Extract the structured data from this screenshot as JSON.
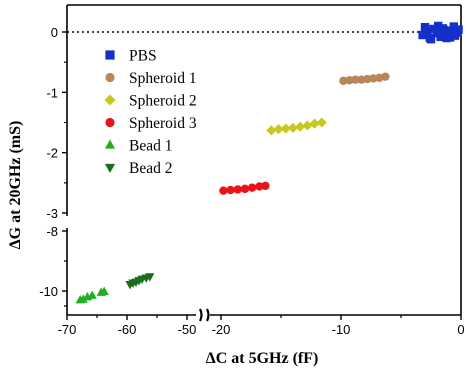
{
  "chart_data": {
    "type": "scatter",
    "title": "",
    "xlabel": "ΔC at 5GHz (fF)",
    "ylabel": "ΔG at 20GHz (mS)",
    "x_axis": {
      "broken": true,
      "segments": [
        [
          -70,
          -50
        ],
        [
          -20,
          0
        ]
      ],
      "ticks": [
        -70,
        -60,
        -50,
        -20,
        -10,
        0
      ],
      "tick_labels": [
        "-70",
        "-60",
        "-50",
        "-20",
        "-10",
        "0"
      ]
    },
    "y_axis": {
      "broken": true,
      "segments": [
        [
          -10.6,
          -8
        ],
        [
          -3,
          0.2
        ]
      ],
      "ticks": [
        0,
        -1,
        -2,
        -3,
        -8,
        -10
      ],
      "tick_labels": [
        "0",
        "-1",
        "-2",
        "-3",
        "-8",
        "-10"
      ]
    },
    "reference_line": {
      "y": 0,
      "style": "dotted"
    },
    "grid": false,
    "legend_position": "top-left",
    "series": [
      {
        "name": "PBS",
        "marker": "square",
        "color": "#1530c8",
        "points": [
          [
            -3.2,
            -0.05
          ],
          [
            -2.9,
            0.0
          ],
          [
            -2.6,
            -0.1
          ],
          [
            -2.3,
            0.05
          ],
          [
            -2.0,
            -0.02
          ],
          [
            -1.7,
            -0.08
          ],
          [
            -1.4,
            0.03
          ],
          [
            -1.1,
            -0.04
          ],
          [
            -0.8,
            0.02
          ],
          [
            -0.5,
            -0.06
          ],
          [
            -0.2,
            0.04
          ],
          [
            -3.0,
            0.08
          ],
          [
            -2.5,
            -0.12
          ],
          [
            -1.9,
            0.1
          ],
          [
            -1.2,
            -0.1
          ],
          [
            -0.6,
            0.09
          ],
          [
            -2.8,
            -0.02
          ],
          [
            -1.5,
            0.06
          ],
          [
            -0.9,
            -0.09
          ],
          [
            -0.3,
            -0.01
          ]
        ]
      },
      {
        "name": "Spheroid 1",
        "marker": "circle",
        "color": "#b8865a",
        "points": [
          [
            -9.8,
            -0.81
          ],
          [
            -9.3,
            -0.8
          ],
          [
            -8.8,
            -0.79
          ],
          [
            -8.3,
            -0.79
          ],
          [
            -7.8,
            -0.78
          ],
          [
            -7.3,
            -0.77
          ],
          [
            -6.8,
            -0.76
          ],
          [
            -6.3,
            -0.74
          ]
        ]
      },
      {
        "name": "Spheroid 2",
        "marker": "diamond",
        "color": "#c8c81e",
        "points": [
          [
            -15.8,
            -1.63
          ],
          [
            -15.2,
            -1.61
          ],
          [
            -14.6,
            -1.6
          ],
          [
            -14.0,
            -1.59
          ],
          [
            -13.4,
            -1.57
          ],
          [
            -12.8,
            -1.55
          ],
          [
            -12.2,
            -1.52
          ],
          [
            -11.6,
            -1.5
          ]
        ]
      },
      {
        "name": "Spheroid 3",
        "marker": "circle",
        "color": "#e8141a",
        "points": [
          [
            -19.8,
            -2.63
          ],
          [
            -19.2,
            -2.62
          ],
          [
            -18.6,
            -2.61
          ],
          [
            -18.0,
            -2.6
          ],
          [
            -17.4,
            -2.58
          ],
          [
            -16.8,
            -2.56
          ],
          [
            -16.3,
            -2.55
          ]
        ]
      },
      {
        "name": "Bead 1",
        "marker": "triangle-up",
        "color": "#1fb01f",
        "points": [
          [
            -67.8,
            -10.3
          ],
          [
            -67.3,
            -10.28
          ],
          [
            -66.6,
            -10.2
          ],
          [
            -65.8,
            -10.15
          ],
          [
            -64.3,
            -10.05
          ],
          [
            -63.8,
            -10.02
          ]
        ]
      },
      {
        "name": "Bead 2",
        "marker": "triangle-down",
        "color": "#1a6e1a",
        "points": [
          [
            -59.5,
            -9.78
          ],
          [
            -59.0,
            -9.73
          ],
          [
            -58.5,
            -9.7
          ],
          [
            -58.0,
            -9.65
          ],
          [
            -57.5,
            -9.6
          ],
          [
            -56.8,
            -9.56
          ],
          [
            -56.2,
            -9.52
          ]
        ]
      }
    ]
  }
}
